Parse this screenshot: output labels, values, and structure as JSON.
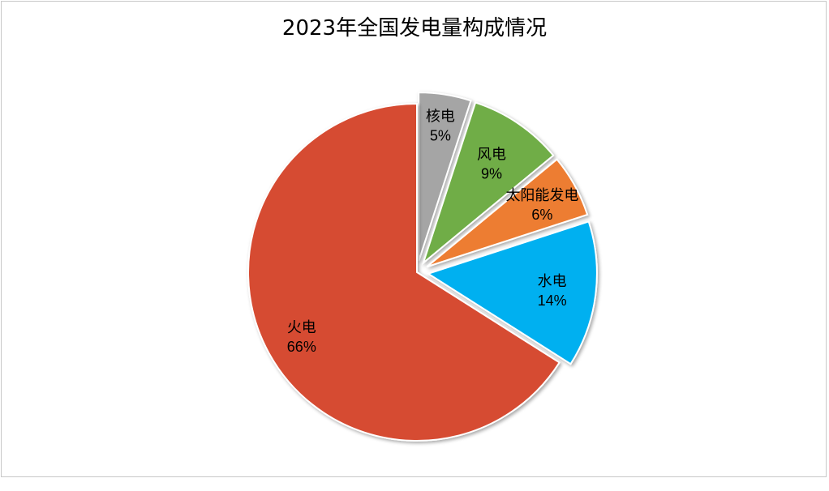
{
  "chart_data": {
    "type": "pie",
    "title": "2023年全国发电量构成情况",
    "start_position": "top, clockwise",
    "exploded": true,
    "slices": [
      {
        "name": "核电",
        "value": 5,
        "label": "5%",
        "color": "#a5a5a5"
      },
      {
        "name": "风电",
        "value": 9,
        "label": "9%",
        "color": "#70ad47"
      },
      {
        "name": "太阳能发电",
        "value": 6,
        "label": "6%",
        "color": "#ed7d31"
      },
      {
        "name": "水电",
        "value": 14,
        "label": "14%",
        "color": "#00b0f0"
      },
      {
        "name": "火电",
        "value": 66,
        "label": "66%",
        "color": "#d64b32"
      }
    ]
  }
}
